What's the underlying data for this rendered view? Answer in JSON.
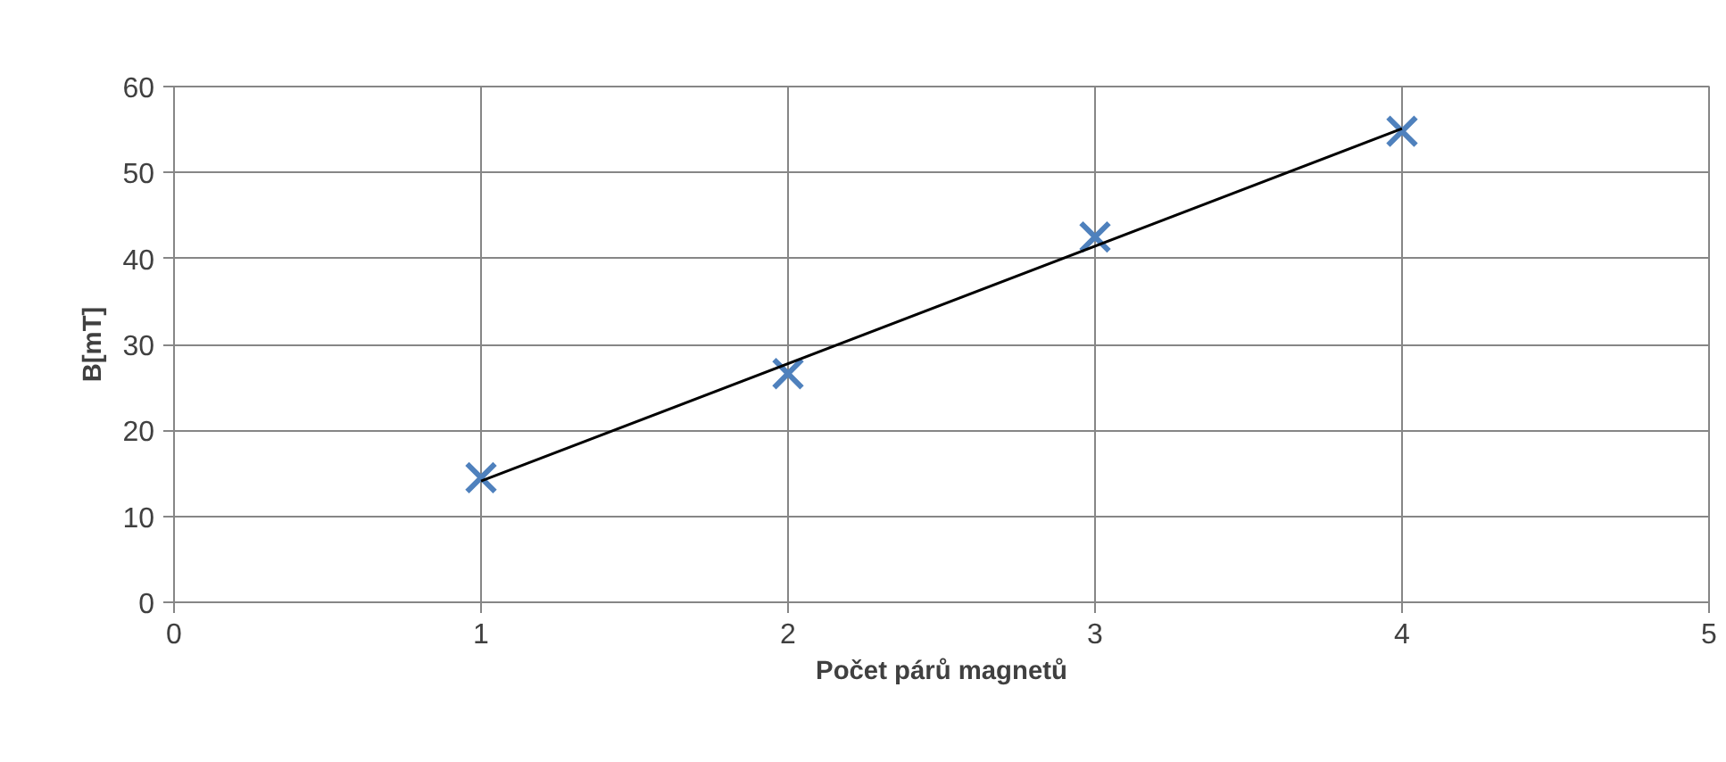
{
  "chart_data": {
    "type": "scatter",
    "xlabel": "Počet párů magnetů",
    "ylabel": "B[mT]",
    "xlim": [
      0,
      5
    ],
    "ylim": [
      0,
      60
    ],
    "xticks": [
      0,
      1,
      2,
      3,
      4,
      5
    ],
    "yticks": [
      0,
      10,
      20,
      30,
      40,
      50,
      60
    ],
    "grid": true,
    "series": [
      {
        "color": "#4f81bd",
        "marker": "cross",
        "x": [
          1,
          2,
          3,
          4
        ],
        "values": [
          14.5,
          26.6,
          42.5,
          54.8
        ]
      },
      {
        "type": "line",
        "marker": "none",
        "color": "#000000",
        "x": [
          1,
          4
        ],
        "values": [
          14.1,
          55.1
        ],
        "line_style": "solid"
      }
    ]
  }
}
